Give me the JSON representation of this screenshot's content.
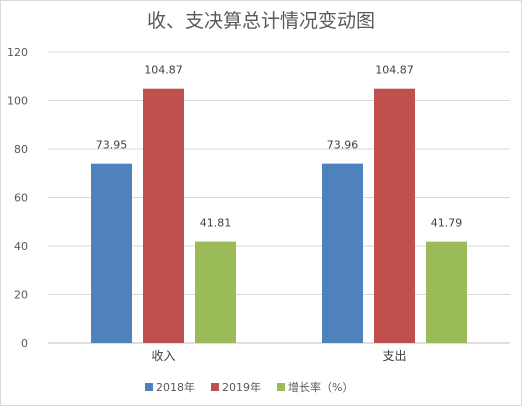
{
  "chart_data": {
    "type": "bar",
    "title": "收、支决算总计情况变动图",
    "categories": [
      "收入",
      "支出"
    ],
    "series": [
      {
        "name": "2018年",
        "values": [
          73.95,
          73.96
        ],
        "labels": [
          "73.95",
          "73.96"
        ],
        "color": "#4f81bd"
      },
      {
        "name": "2019年",
        "values": [
          104.87,
          104.87
        ],
        "labels": [
          "104.87",
          "104.87"
        ],
        "color": "#c0504d"
      },
      {
        "name": "增长率（%）",
        "values": [
          41.81,
          41.79
        ],
        "labels": [
          "41.81",
          "41.79"
        ],
        "color": "#9bbb59"
      }
    ],
    "ylim": [
      0,
      120
    ],
    "yticks": [
      "0",
      "20",
      "40",
      "60",
      "80",
      "100",
      "120"
    ],
    "grid": true,
    "legend": "bottom"
  }
}
